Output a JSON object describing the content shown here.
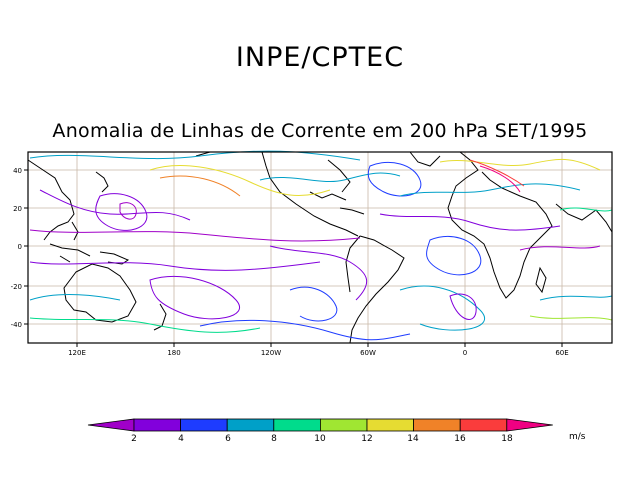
{
  "header": {
    "org": "INPE/CPTEC",
    "title": "Anomalia de Linhas de Corrente em 200 hPa SET/1995"
  },
  "map": {
    "lat_ticks": [
      "40",
      "20",
      "0",
      "-20",
      "-40"
    ],
    "lon_ticks": [
      "120E",
      "180",
      "120W",
      "60W",
      "0",
      "60E"
    ]
  },
  "colorbar": {
    "labels": [
      "2",
      "4",
      "6",
      "8",
      "10",
      "12",
      "14",
      "16",
      "18"
    ],
    "units": "m/s",
    "colors": [
      "#a000c8",
      "#8200dc",
      "#1e3cff",
      "#00a0c8",
      "#00dc8c",
      "#a0e632",
      "#e6dc32",
      "#f08228",
      "#fa3c3c",
      "#f00082"
    ]
  }
}
